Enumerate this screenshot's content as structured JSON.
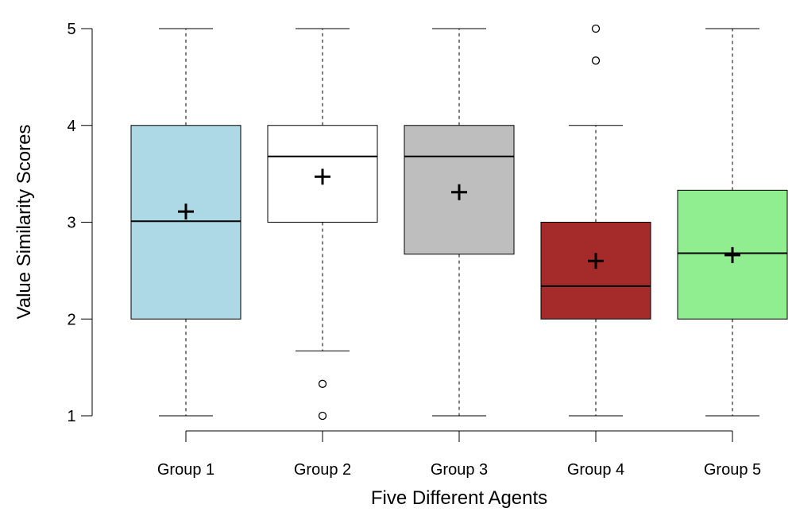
{
  "chart_data": {
    "type": "box",
    "xlabel": "Five Different Agents",
    "ylabel": "Value Similarity Scores",
    "ylim": [
      1,
      5
    ],
    "yticks": [
      1,
      2,
      3,
      4,
      5
    ],
    "grid": false,
    "mean_marker": "+",
    "categories": [
      "Group 1",
      "Group 2",
      "Group 3",
      "Group 4",
      "Group 5"
    ],
    "boxes": [
      {
        "name": "Group 1",
        "color": "#ADD8E6",
        "whisker_low": 1,
        "q1": 2,
        "median": 3.01,
        "q3": 4,
        "whisker_high": 5,
        "mean": 3.11,
        "outliers": []
      },
      {
        "name": "Group 2",
        "color": "#FFFFFF",
        "whisker_low": 1.67,
        "q1": 3,
        "median": 3.68,
        "q3": 4,
        "whisker_high": 5,
        "mean": 3.47,
        "outliers": [
          1,
          1.33
        ]
      },
      {
        "name": "Group 3",
        "color": "#BEBEBE",
        "whisker_low": 1,
        "q1": 2.67,
        "median": 3.68,
        "q3": 4,
        "whisker_high": 5,
        "mean": 3.31,
        "outliers": []
      },
      {
        "name": "Group 4",
        "color": "#A52A2A",
        "whisker_low": 1,
        "q1": 2,
        "median": 2.34,
        "q3": 3,
        "whisker_high": 4,
        "mean": 2.6,
        "outliers": [
          4.67,
          5
        ]
      },
      {
        "name": "Group 5",
        "color": "#90EE90",
        "whisker_low": 1,
        "q1": 2,
        "median": 2.68,
        "q3": 3.33,
        "whisker_high": 5,
        "mean": 2.66,
        "outliers": []
      }
    ]
  }
}
